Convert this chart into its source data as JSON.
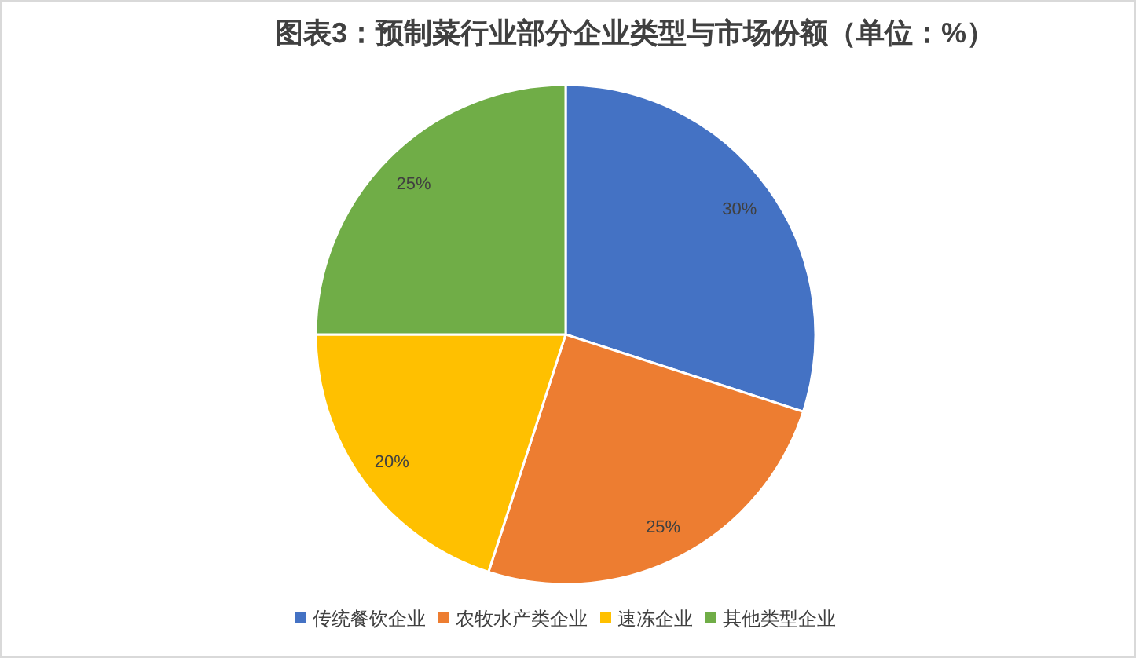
{
  "chart_data": {
    "type": "pie",
    "title": "图表3：预制菜行业部分企业类型与市场份额（单位：%）",
    "categories": [
      "传统餐饮企业",
      "农牧水产类企业",
      "速冻企业",
      "其他类型企业"
    ],
    "values": [
      30,
      25,
      20,
      25
    ],
    "colors": [
      "#4472c4",
      "#ed7d31",
      "#ffc000",
      "#70ad47"
    ],
    "value_labels": [
      "30%",
      "25%",
      "20%",
      "25%"
    ],
    "legend": "bottom"
  }
}
